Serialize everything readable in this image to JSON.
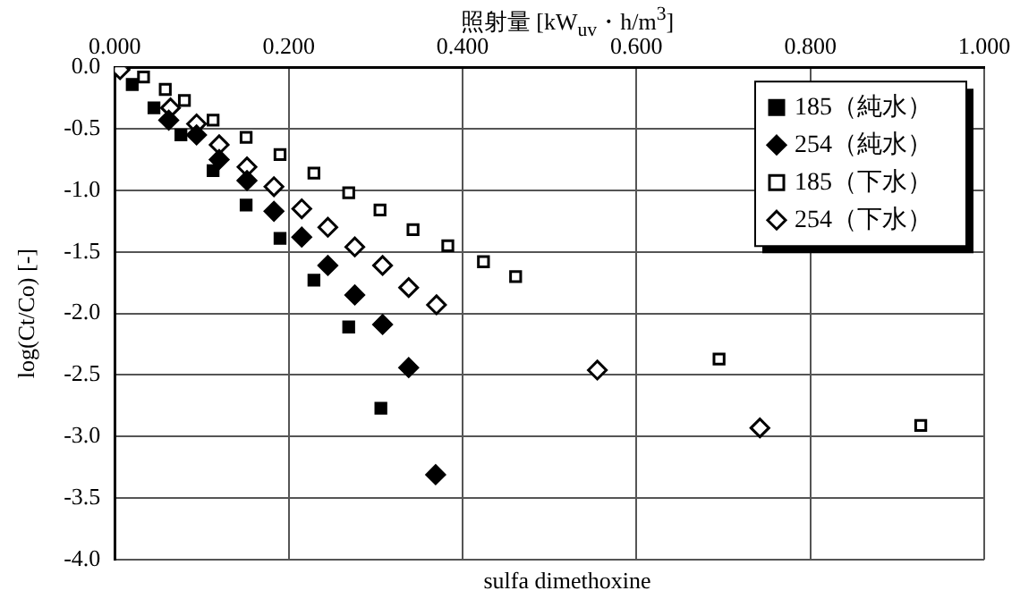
{
  "chart_data": {
    "type": "scatter",
    "xlabel": "照射量 [kW$_{uv}$・h/m$^{3}$]",
    "ylabel": "log(Ct/Co) [-]",
    "xlim": [
      0,
      1
    ],
    "xticks": [
      {
        "value": 0,
        "label": "0.000"
      },
      {
        "value": 0.2,
        "label": "0.200"
      },
      {
        "value": 0.4,
        "label": "0.400"
      },
      {
        "value": 0.6,
        "label": "0.600"
      },
      {
        "value": 0.8,
        "label": "0.800"
      },
      {
        "value": 1,
        "label": "1.000"
      }
    ],
    "ylim": [
      -4,
      0
    ],
    "yticks": [
      {
        "value": 0,
        "label": "0.0"
      },
      {
        "value": -0.5,
        "label": "-0.5"
      },
      {
        "value": -1,
        "label": "-1.0"
      },
      {
        "value": -1.5,
        "label": "-1.5"
      },
      {
        "value": -2,
        "label": "-2.0"
      },
      {
        "value": -2.5,
        "label": "-2.5"
      },
      {
        "value": -3,
        "label": "-3.0"
      },
      {
        "value": -3.5,
        "label": "-3.5"
      },
      {
        "value": -4,
        "label": "-4.0"
      }
    ],
    "grid": true,
    "legend": "top right",
    "annotations": [
      "sulfa dimethoxine"
    ],
    "series": [
      {
        "name": "185（純水）",
        "color": "#000000",
        "marker": "square",
        "x": [
          0.02,
          0.045,
          0.076,
          0.113,
          0.151,
          0.19,
          0.229,
          0.269,
          0.306
        ],
        "values": [
          -0.14,
          -0.33,
          -0.55,
          -0.84,
          -1.12,
          -1.39,
          -1.73,
          -2.11,
          -2.77
        ]
      },
      {
        "name": "254（純水）",
        "color": "#000000",
        "marker": "diamond",
        "x": [
          0.062,
          0.094,
          0.12,
          0.152,
          0.183,
          0.215,
          0.245,
          0.276,
          0.308,
          0.338,
          0.369
        ],
        "values": [
          -0.43,
          -0.55,
          -0.75,
          -0.92,
          -1.17,
          -1.38,
          -1.61,
          -1.85,
          -2.09,
          -2.44,
          -3.31
        ]
      },
      {
        "name": "185（下水）",
        "color": "#ffffff",
        "marker": "square",
        "x": [
          0.033,
          0.058,
          0.08,
          0.113,
          0.151,
          0.19,
          0.229,
          0.269,
          0.305,
          0.343,
          0.383,
          0.424,
          0.461,
          0.695,
          0.927
        ],
        "values": [
          -0.08,
          -0.18,
          -0.27,
          -0.43,
          -0.57,
          -0.71,
          -0.86,
          -1.02,
          -1.16,
          -1.32,
          -1.45,
          -1.58,
          -1.7,
          -2.37,
          -2.91
        ]
      },
      {
        "name": "254（下水）",
        "color": "#ffffff",
        "marker": "diamond",
        "x": [
          0.006,
          0.064,
          0.094,
          0.12,
          0.152,
          0.183,
          0.215,
          0.245,
          0.276,
          0.308,
          0.338,
          0.37,
          0.555,
          0.742
        ],
        "values": [
          -0.02,
          -0.33,
          -0.46,
          -0.63,
          -0.81,
          -0.97,
          -1.15,
          -1.3,
          -1.46,
          -1.61,
          -1.79,
          -1.93,
          -2.46,
          -2.93
        ]
      }
    ]
  }
}
